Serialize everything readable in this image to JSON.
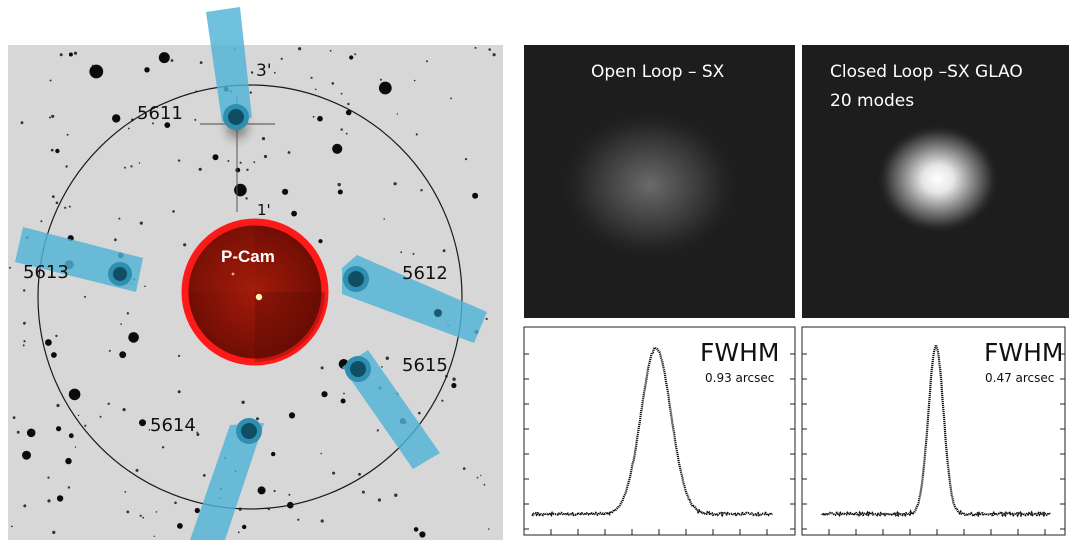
{
  "sky_field": {
    "ring_outer_label": "3'",
    "ring_inner_label": "1'",
    "camera_label": "P-Cam",
    "probes": [
      {
        "id": "5611"
      },
      {
        "id": "5612"
      },
      {
        "id": "5613"
      },
      {
        "id": "5614"
      },
      {
        "id": "5615"
      }
    ],
    "colors": {
      "probe": "#4fb3d6",
      "pcam_ring": "#ff1a1a",
      "pcam_fill": "#8a1206"
    }
  },
  "psf_images": [
    {
      "title_line1": "Open Loop – SX",
      "title_line2": ""
    },
    {
      "title_line1": "Closed Loop –SX GLAO",
      "title_line2": "20 modes"
    }
  ],
  "profiles": [
    {
      "metric": "FWHM",
      "value_text": "0.93 arcsec",
      "fwhm": 0.93
    },
    {
      "metric": "FWHM",
      "value_text": "0.47 arcsec",
      "fwhm": 0.47
    }
  ]
}
